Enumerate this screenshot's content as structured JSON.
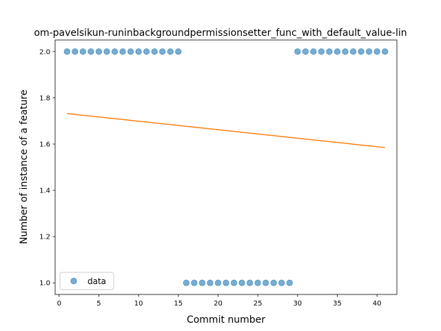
{
  "chart_data": {
    "type": "scatter",
    "title": "om-pavelsikun-runinbackgroundpermissionsetter_func_with_default_value-lin",
    "xlabel": "Commit number",
    "ylabel": "Number of instance of a feature",
    "xlim": [
      -0.5,
      42.5
    ],
    "ylim": [
      0.95,
      2.05
    ],
    "xticks": [
      0,
      5,
      10,
      15,
      20,
      25,
      30,
      35,
      40
    ],
    "xtick_labels": [
      "0",
      "5",
      "10",
      "15",
      "20",
      "25",
      "30",
      "35",
      "40"
    ],
    "yticks": [
      1.0,
      1.2,
      1.4,
      1.6,
      1.8,
      2.0
    ],
    "ytick_labels": [
      "1.0",
      "1.2",
      "1.4",
      "1.6",
      "1.8",
      "2.0"
    ],
    "grid": false,
    "legend": {
      "position": "lower-left",
      "entries": [
        "data"
      ]
    },
    "series": [
      {
        "name": "data",
        "kind": "scatter",
        "color": "#1f77b4",
        "x": [
          1,
          2,
          3,
          4,
          5,
          6,
          7,
          8,
          9,
          10,
          11,
          12,
          13,
          14,
          15,
          16,
          17,
          18,
          19,
          20,
          21,
          22,
          23,
          24,
          25,
          26,
          27,
          28,
          29,
          30,
          31,
          32,
          33,
          34,
          35,
          36,
          37,
          38,
          39,
          40,
          41
        ],
        "y": [
          2,
          2,
          2,
          2,
          2,
          2,
          2,
          2,
          2,
          2,
          2,
          2,
          2,
          2,
          2,
          1,
          1,
          1,
          1,
          1,
          1,
          1,
          1,
          1,
          1,
          1,
          1,
          1,
          1,
          2,
          2,
          2,
          2,
          2,
          2,
          2,
          2,
          2,
          2,
          2,
          2
        ]
      },
      {
        "kind": "line",
        "color": "#ff7f0e",
        "x": [
          1,
          41
        ],
        "y": [
          1.732,
          1.585
        ]
      }
    ]
  }
}
